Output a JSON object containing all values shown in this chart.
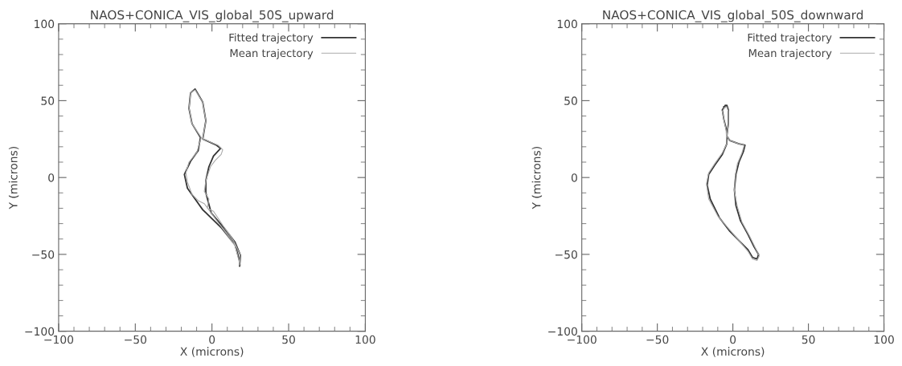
{
  "chart_data": [
    {
      "type": "line",
      "title": "NAOS+CONICA_VIS_global_50S_upward",
      "xlabel": "X (microns)",
      "ylabel": "Y (microns)",
      "xlim": [
        -100,
        100
      ],
      "ylim": [
        -100,
        100
      ],
      "xticks": [
        -100,
        -50,
        0,
        50,
        100
      ],
      "yticks": [
        -100,
        -50,
        0,
        50,
        100
      ],
      "grid": false,
      "legend": "top right",
      "line_style": "solid",
      "marker": "none",
      "series": [
        {
          "name": "Fitted trajectory",
          "color": "#333333",
          "x": [
            18,
            18.6,
            15,
            8,
            -0.5,
            -4,
            -4,
            -2,
            1,
            5.6,
            3,
            -6,
            -4,
            -6,
            -11,
            -14,
            -15,
            -13,
            -7.5,
            -9,
            -14,
            -18,
            -16,
            -6,
            6.4,
            15,
            18,
            18.2
          ],
          "values": [
            -57.6,
            -50.6,
            -42,
            -33,
            -23,
            -10,
            -2,
            7,
            14,
            19,
            21,
            25,
            37,
            49,
            57.6,
            55,
            45,
            35,
            26,
            17.5,
            10.5,
            2,
            -7,
            -21,
            -33,
            -43.7,
            -54,
            -57
          ]
        },
        {
          "name": "Mean trajectory",
          "color": "#aaaaaa",
          "x": [
            18,
            18.4,
            14,
            7,
            1,
            -3,
            -2,
            -5,
            -4,
            -1,
            2,
            6,
            7,
            4,
            -6,
            -4,
            -6,
            -11,
            -14,
            -15,
            -13,
            -7,
            -10,
            -15,
            -17,
            -16,
            -13,
            -9,
            -5,
            6,
            15,
            17.8
          ],
          "values": [
            -57,
            -50,
            -41,
            -31,
            -22,
            -20,
            -14,
            -9,
            -2,
            7,
            11,
            15,
            18,
            21,
            25,
            37,
            49,
            57,
            55,
            45,
            35,
            26,
            16,
            10,
            3,
            -3,
            -11,
            -15,
            -17,
            -32,
            -44,
            -55
          ]
        }
      ]
    },
    {
      "type": "line",
      "title": "NAOS+CONICA_VIS_global_50S_downward",
      "xlabel": "X (microns)",
      "ylabel": "Y (microns)",
      "xlim": [
        -100,
        100
      ],
      "ylim": [
        -100,
        100
      ],
      "xticks": [
        -100,
        -50,
        0,
        50,
        100
      ],
      "yticks": [
        -100,
        -50,
        0,
        50,
        100
      ],
      "grid": false,
      "legend": "top right",
      "line_style": "solid",
      "marker": "none",
      "series": [
        {
          "name": "Fitted trajectory",
          "color": "#333333",
          "x": [
            -6,
            -4,
            -3,
            -3,
            -4,
            -2,
            4,
            8,
            7,
            4,
            2,
            1,
            2,
            5,
            10,
            14,
            17,
            16,
            13,
            10,
            5,
            -2,
            -9,
            -15,
            -17,
            -16,
            -12,
            -7,
            -4,
            -4,
            -6,
            -7,
            -5
          ],
          "values": [
            46,
            47,
            44,
            35,
            27,
            24,
            22,
            21,
            17,
            10,
            2,
            -8,
            -18,
            -28,
            -37,
            -45,
            -50,
            -53,
            -52,
            -47,
            -42,
            -35,
            -26,
            -14,
            -5,
            2,
            8,
            15,
            22,
            30,
            38,
            44,
            47
          ]
        },
        {
          "name": "Mean trajectory",
          "color": "#aaaaaa",
          "x": [
            -6,
            -4,
            -3,
            -3,
            -4,
            -2,
            4,
            7.5,
            6,
            3,
            1.5,
            1,
            3,
            6,
            11,
            15,
            17.5,
            16,
            13,
            10,
            4,
            -3,
            -10,
            -16,
            -17.5,
            -16,
            -12,
            -7,
            -4,
            -4.5,
            -6,
            -7,
            -5
          ],
          "values": [
            45,
            46,
            43,
            34,
            27,
            24,
            22,
            21,
            16,
            9,
            1,
            -9,
            -19,
            -29,
            -38,
            -46,
            -51,
            -54,
            -53,
            -48,
            -41,
            -33,
            -25,
            -14,
            -4,
            3,
            9,
            16,
            22,
            31,
            38,
            43,
            46
          ]
        }
      ]
    }
  ]
}
